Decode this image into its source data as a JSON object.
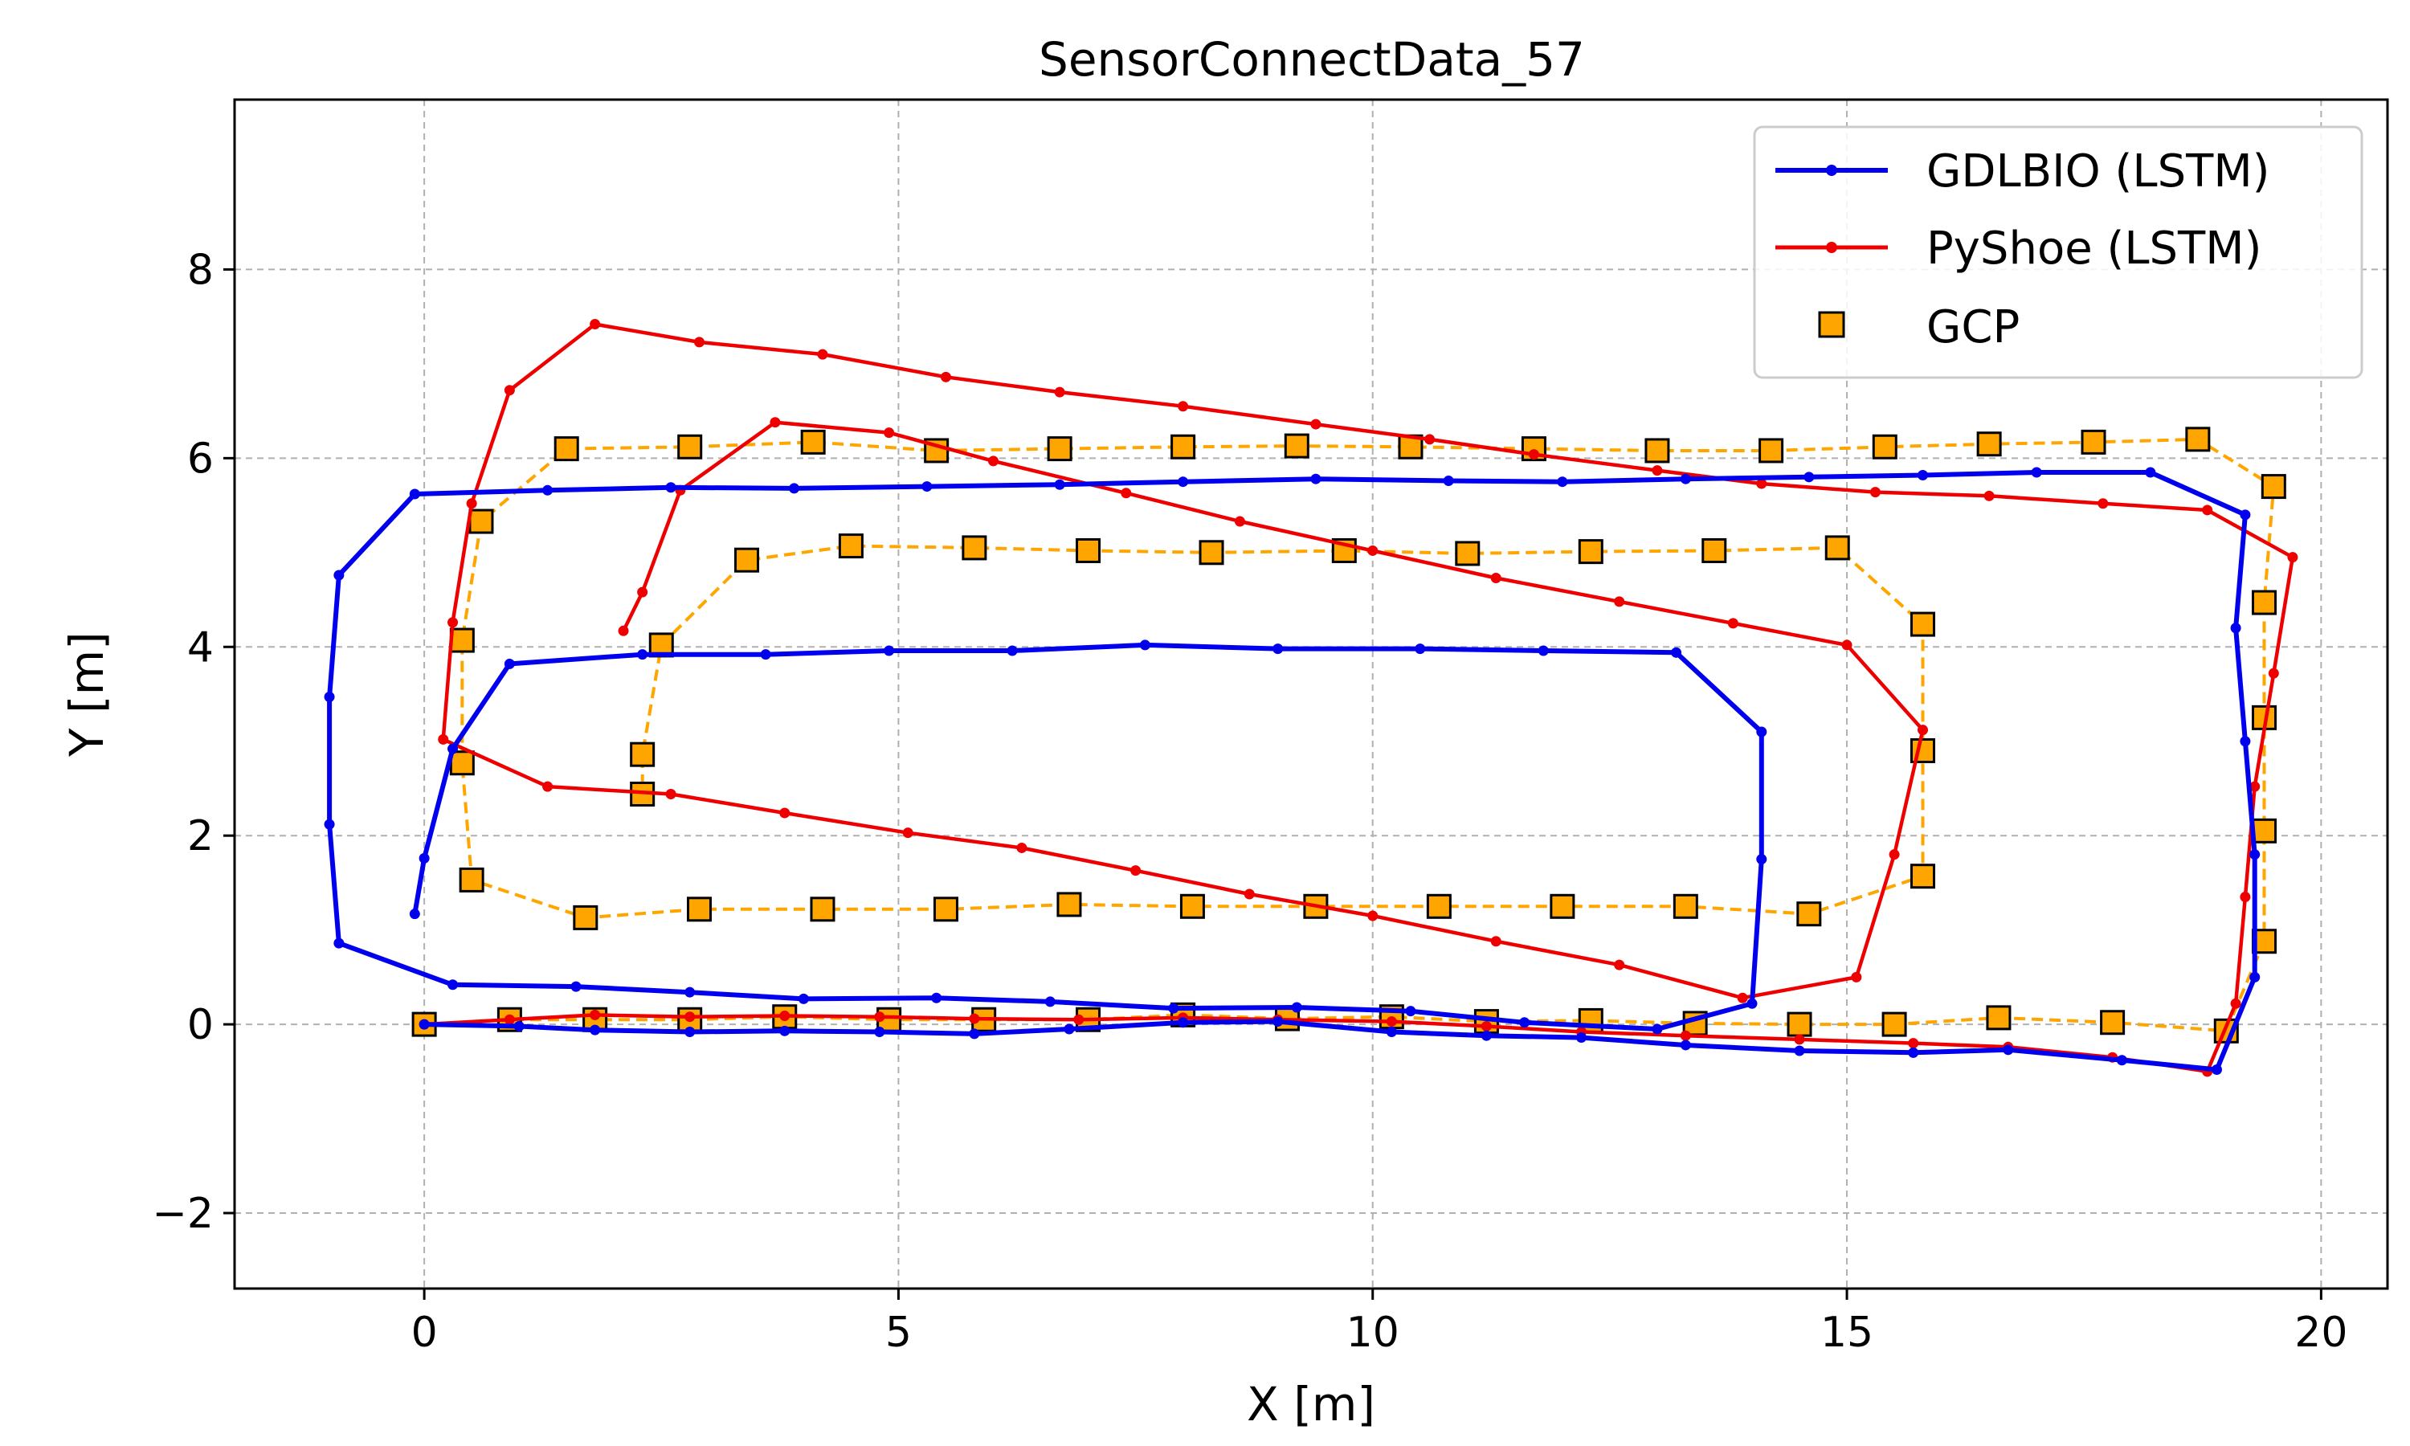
{
  "chart_data": {
    "type": "line",
    "title": "SensorConnectData_57",
    "xlabel": "X [m]",
    "ylabel": "Y [m]",
    "xlim": [
      -2.0,
      20.7
    ],
    "ylim": [
      -2.8,
      9.8
    ],
    "xticks": [
      0,
      5,
      10,
      15,
      20
    ],
    "yticks": [
      -2,
      0,
      2,
      4,
      6,
      8
    ],
    "xtick_labels": [
      "0",
      "5",
      "10",
      "15",
      "20"
    ],
    "ytick_labels": [
      "−2",
      "0",
      "2",
      "4",
      "6",
      "8"
    ],
    "grid": true,
    "legend_position": "top-right",
    "series": [
      {
        "name": "GDLBIO (LSTM)",
        "color": "#0000ee",
        "style": "line-dots",
        "points": [
          [
            0,
            0
          ],
          [
            1,
            -0.02
          ],
          [
            1.8,
            -0.06
          ],
          [
            2.8,
            -0.08
          ],
          [
            3.8,
            -0.07
          ],
          [
            4.8,
            -0.08
          ],
          [
            5.8,
            -0.1
          ],
          [
            6.8,
            -0.05
          ],
          [
            8,
            0.02
          ],
          [
            9,
            0.03
          ],
          [
            10.2,
            -0.08
          ],
          [
            11.2,
            -0.12
          ],
          [
            12.2,
            -0.14
          ],
          [
            13.3,
            -0.22
          ],
          [
            14.5,
            -0.28
          ],
          [
            15.7,
            -0.3
          ],
          [
            16.7,
            -0.27
          ],
          [
            17.9,
            -0.38
          ],
          [
            18.9,
            -0.48
          ],
          [
            19.3,
            0.5
          ],
          [
            19.3,
            1.8
          ],
          [
            19.2,
            3
          ],
          [
            19.1,
            4.2
          ],
          [
            19.2,
            5.4
          ],
          [
            18.2,
            5.85
          ],
          [
            17,
            5.85
          ],
          [
            15.8,
            5.82
          ],
          [
            14.6,
            5.8
          ],
          [
            13.3,
            5.78
          ],
          [
            12,
            5.75
          ],
          [
            10.8,
            5.76
          ],
          [
            9.4,
            5.78
          ],
          [
            8,
            5.75
          ],
          [
            6.7,
            5.72
          ],
          [
            5.3,
            5.7
          ],
          [
            3.9,
            5.68
          ],
          [
            2.6,
            5.69
          ],
          [
            1.3,
            5.66
          ],
          [
            -0.1,
            5.62
          ],
          [
            -0.9,
            4.76
          ],
          [
            -1,
            3.47
          ],
          [
            -1,
            2.12
          ],
          [
            -0.9,
            0.86
          ],
          [
            0.3,
            0.42
          ],
          [
            1.6,
            0.4
          ],
          [
            2.8,
            0.34
          ],
          [
            4,
            0.27
          ],
          [
            5.4,
            0.28
          ],
          [
            6.6,
            0.24
          ],
          [
            7.9,
            0.17
          ],
          [
            9.2,
            0.18
          ],
          [
            10.4,
            0.14
          ],
          [
            11.6,
            0.02
          ],
          [
            13,
            -0.05
          ],
          [
            14,
            0.22
          ],
          [
            14.1,
            1.75
          ],
          [
            14.1,
            3.1
          ],
          [
            13.2,
            3.94
          ],
          [
            11.8,
            3.96
          ],
          [
            10.5,
            3.98
          ],
          [
            9,
            3.98
          ],
          [
            7.6,
            4.02
          ],
          [
            6.2,
            3.96
          ],
          [
            4.9,
            3.96
          ],
          [
            3.6,
            3.92
          ],
          [
            2.3,
            3.92
          ],
          [
            0.9,
            3.82
          ],
          [
            0.3,
            2.92
          ],
          [
            0,
            1.76
          ],
          [
            -0.1,
            1.17
          ]
        ]
      },
      {
        "name": "PyShoe (LSTM)",
        "color": "#ee0000",
        "style": "line-dots",
        "points": [
          [
            0,
            0
          ],
          [
            0.9,
            0.05
          ],
          [
            1.8,
            0.1
          ],
          [
            2.8,
            0.08
          ],
          [
            3.8,
            0.09
          ],
          [
            4.8,
            0.08
          ],
          [
            5.8,
            0.06
          ],
          [
            6.9,
            0.05
          ],
          [
            8,
            0.07
          ],
          [
            9,
            0.05
          ],
          [
            10.2,
            0.03
          ],
          [
            11.2,
            -0.02
          ],
          [
            12.2,
            -0.08
          ],
          [
            13.3,
            -0.12
          ],
          [
            14.5,
            -0.16
          ],
          [
            15.7,
            -0.2
          ],
          [
            16.7,
            -0.24
          ],
          [
            17.8,
            -0.35
          ],
          [
            18.8,
            -0.5
          ],
          [
            19.1,
            0.22
          ],
          [
            19.2,
            1.35
          ],
          [
            19.3,
            2.52
          ],
          [
            19.5,
            3.72
          ],
          [
            19.7,
            4.95
          ],
          [
            18.8,
            5.45
          ],
          [
            17.7,
            5.52
          ],
          [
            16.5,
            5.6
          ],
          [
            15.3,
            5.64
          ],
          [
            14.1,
            5.73
          ],
          [
            13,
            5.87
          ],
          [
            11.7,
            6.04
          ],
          [
            10.6,
            6.2
          ],
          [
            9.4,
            6.36
          ],
          [
            8,
            6.55
          ],
          [
            6.7,
            6.7
          ],
          [
            5.5,
            6.86
          ],
          [
            4.2,
            7.1
          ],
          [
            2.9,
            7.23
          ],
          [
            1.8,
            7.42
          ],
          [
            0.9,
            6.72
          ],
          [
            0.5,
            5.52
          ],
          [
            0.3,
            4.26
          ],
          [
            0.2,
            3.02
          ],
          [
            1.3,
            2.52
          ],
          [
            2.6,
            2.44
          ],
          [
            3.8,
            2.24
          ],
          [
            5.1,
            2.03
          ],
          [
            6.3,
            1.87
          ],
          [
            7.5,
            1.63
          ],
          [
            8.7,
            1.38
          ],
          [
            10,
            1.15
          ],
          [
            11.3,
            0.88
          ],
          [
            12.6,
            0.63
          ],
          [
            13.9,
            0.28
          ],
          [
            15.1,
            0.5
          ],
          [
            15.5,
            1.8
          ],
          [
            15.8,
            3.12
          ],
          [
            15,
            4.02
          ],
          [
            13.8,
            4.25
          ],
          [
            12.6,
            4.48
          ],
          [
            11.3,
            4.73
          ],
          [
            10,
            5.02
          ],
          [
            8.6,
            5.33
          ],
          [
            7.4,
            5.63
          ],
          [
            6,
            5.97
          ],
          [
            4.9,
            6.27
          ],
          [
            3.7,
            6.38
          ],
          [
            2.7,
            5.66
          ],
          [
            2.3,
            4.58
          ],
          [
            2.1,
            4.17
          ]
        ]
      },
      {
        "name": "",
        "color": "#ffa500",
        "style": "dashed",
        "points": [
          [
            0,
            0
          ],
          [
            0.9,
            0.05
          ],
          [
            1.8,
            0.05
          ],
          [
            2.8,
            0.05
          ],
          [
            3.8,
            0.08
          ],
          [
            4.9,
            0.05
          ],
          [
            5.9,
            0.05
          ],
          [
            7,
            0.05
          ],
          [
            8,
            0.1
          ],
          [
            9.1,
            0.06
          ],
          [
            10.2,
            0.08
          ],
          [
            11.2,
            0.03
          ],
          [
            12.3,
            0.04
          ],
          [
            13.4,
            0.01
          ],
          [
            14.5,
            0
          ],
          [
            15.5,
            0
          ],
          [
            16.6,
            0.07
          ],
          [
            17.8,
            0.02
          ],
          [
            19,
            -0.07
          ],
          [
            19.4,
            0.88
          ],
          [
            19.4,
            2.05
          ],
          [
            19.4,
            3.25
          ],
          [
            19.4,
            4.47
          ],
          [
            19.5,
            5.7
          ],
          [
            18.7,
            6.2
          ],
          [
            17.6,
            6.17
          ],
          [
            16.5,
            6.15
          ],
          [
            15.4,
            6.12
          ],
          [
            14.2,
            6.08
          ],
          [
            13,
            6.08
          ],
          [
            11.7,
            6.1
          ],
          [
            10.4,
            6.12
          ],
          [
            9.2,
            6.13
          ],
          [
            8,
            6.12
          ],
          [
            6.7,
            6.1
          ],
          [
            5.4,
            6.08
          ],
          [
            4.1,
            6.17
          ],
          [
            2.8,
            6.12
          ],
          [
            1.5,
            6.1
          ],
          [
            0.6,
            5.33
          ],
          [
            0.4,
            4.07
          ],
          [
            0.4,
            2.77
          ],
          [
            0.5,
            1.53
          ],
          [
            1.7,
            1.13
          ],
          [
            2.9,
            1.22
          ],
          [
            4.2,
            1.22
          ],
          [
            5.5,
            1.22
          ],
          [
            6.8,
            1.27
          ],
          [
            8.1,
            1.25
          ],
          [
            9.4,
            1.25
          ],
          [
            10.7,
            1.25
          ],
          [
            12,
            1.25
          ],
          [
            13.3,
            1.25
          ],
          [
            14.6,
            1.17
          ],
          [
            15.8,
            1.57
          ],
          [
            15.8,
            2.9
          ],
          [
            15.8,
            4.24
          ],
          [
            14.9,
            5.05
          ],
          [
            13.6,
            5.02
          ],
          [
            12.3,
            5.01
          ],
          [
            11,
            4.99
          ],
          [
            9.7,
            5.02
          ],
          [
            8.3,
            5
          ],
          [
            7,
            5.02
          ],
          [
            5.8,
            5.05
          ],
          [
            4.5,
            5.07
          ],
          [
            3.4,
            4.92
          ],
          [
            2.5,
            4.02
          ],
          [
            2.3,
            2.86
          ],
          [
            2.3,
            2.44
          ]
        ]
      },
      {
        "name": "GCP",
        "color": "#ffa500",
        "edge_color": "#000000",
        "style": "square-markers",
        "points": [
          [
            0,
            0
          ],
          [
            0.9,
            0.05
          ],
          [
            1.8,
            0.05
          ],
          [
            2.8,
            0.05
          ],
          [
            3.8,
            0.08
          ],
          [
            4.9,
            0.05
          ],
          [
            5.9,
            0.05
          ],
          [
            7,
            0.05
          ],
          [
            8,
            0.1
          ],
          [
            9.1,
            0.06
          ],
          [
            10.2,
            0.08
          ],
          [
            11.2,
            0.03
          ],
          [
            12.3,
            0.04
          ],
          [
            13.4,
            0.01
          ],
          [
            14.5,
            0
          ],
          [
            15.5,
            0
          ],
          [
            16.6,
            0.07
          ],
          [
            17.8,
            0.02
          ],
          [
            19,
            -0.07
          ],
          [
            19.4,
            0.88
          ],
          [
            19.4,
            2.05
          ],
          [
            19.4,
            3.25
          ],
          [
            19.4,
            4.47
          ],
          [
            19.5,
            5.7
          ],
          [
            18.7,
            6.2
          ],
          [
            17.6,
            6.17
          ],
          [
            16.5,
            6.15
          ],
          [
            15.4,
            6.12
          ],
          [
            14.2,
            6.08
          ],
          [
            13,
            6.08
          ],
          [
            11.7,
            6.1
          ],
          [
            10.4,
            6.12
          ],
          [
            9.2,
            6.13
          ],
          [
            8,
            6.12
          ],
          [
            6.7,
            6.1
          ],
          [
            5.4,
            6.08
          ],
          [
            4.1,
            6.17
          ],
          [
            2.8,
            6.12
          ],
          [
            1.5,
            6.1
          ],
          [
            0.6,
            5.33
          ],
          [
            0.4,
            4.07
          ],
          [
            0.4,
            2.77
          ],
          [
            0.5,
            1.53
          ],
          [
            1.7,
            1.13
          ],
          [
            2.9,
            1.22
          ],
          [
            4.2,
            1.22
          ],
          [
            5.5,
            1.22
          ],
          [
            6.8,
            1.27
          ],
          [
            8.1,
            1.25
          ],
          [
            9.4,
            1.25
          ],
          [
            10.7,
            1.25
          ],
          [
            12,
            1.25
          ],
          [
            13.3,
            1.25
          ],
          [
            14.6,
            1.17
          ],
          [
            15.8,
            1.57
          ],
          [
            15.8,
            2.9
          ],
          [
            15.8,
            4.24
          ],
          [
            14.9,
            5.05
          ],
          [
            13.6,
            5.02
          ],
          [
            12.3,
            5.01
          ],
          [
            11,
            4.99
          ],
          [
            9.7,
            5.02
          ],
          [
            8.3,
            5
          ],
          [
            7,
            5.02
          ],
          [
            5.8,
            5.05
          ],
          [
            4.5,
            5.07
          ],
          [
            3.4,
            4.92
          ],
          [
            2.5,
            4.02
          ],
          [
            2.3,
            2.86
          ],
          [
            2.3,
            2.44
          ]
        ]
      }
    ],
    "legend": [
      "GDLBIO (LSTM)",
      "PyShoe (LSTM)",
      "GCP"
    ]
  }
}
